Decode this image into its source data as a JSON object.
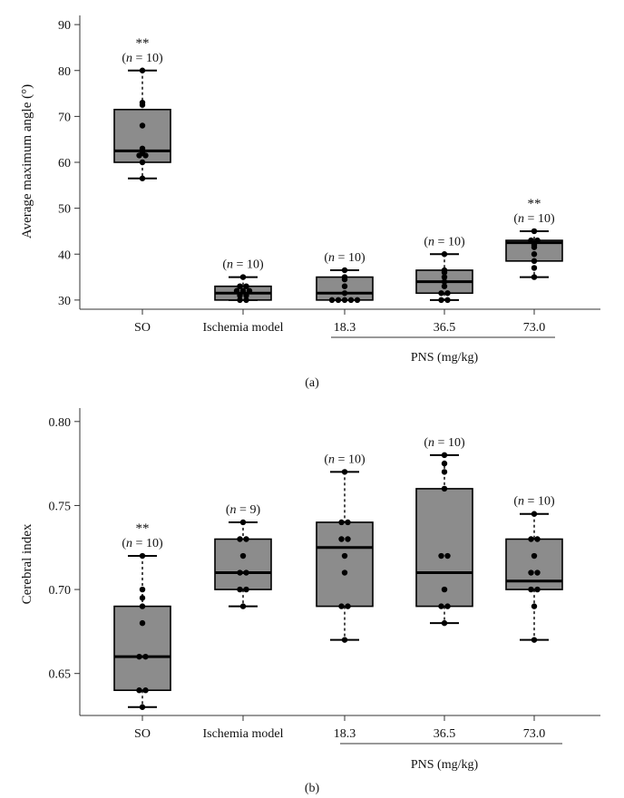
{
  "chart_data": [
    {
      "type": "box",
      "panel_label": "(a)",
      "ylabel": "Average maximum angle (°)",
      "xlabel": "",
      "ylim": [
        28,
        92
      ],
      "yticks": [
        30,
        40,
        50,
        60,
        70,
        80,
        90
      ],
      "group_label": "PNS (mg/kg)",
      "group_categories": [
        "18.3",
        "36.5",
        "73.0"
      ],
      "categories": [
        "SO",
        "Ischemia model",
        "18.3",
        "36.5",
        "73.0"
      ],
      "boxes": [
        {
          "category": "SO",
          "min": 56.5,
          "q1": 60,
          "median": 62.5,
          "q3": 71.5,
          "max": 80,
          "points": [
            56.5,
            60,
            61.5,
            61.5,
            62,
            63,
            68,
            72.5,
            73,
            80
          ],
          "n_label": "10",
          "significance": "**"
        },
        {
          "category": "Ischemia model",
          "min": 30,
          "q1": 30,
          "median": 31.5,
          "q3": 33,
          "max": 35,
          "points": [
            30,
            30,
            31,
            31,
            32,
            32,
            32,
            33,
            33,
            35
          ],
          "n_label": "10",
          "significance": ""
        },
        {
          "category": "18.3",
          "min": 30,
          "q1": 30,
          "median": 31.5,
          "q3": 35,
          "max": 36.5,
          "points": [
            30,
            30,
            30,
            30,
            30,
            31.5,
            33,
            34.5,
            35,
            36.5
          ],
          "n_label": "10",
          "significance": ""
        },
        {
          "category": "36.5",
          "min": 30,
          "q1": 31.5,
          "median": 34,
          "q3": 36.5,
          "max": 40,
          "points": [
            30,
            30,
            31.5,
            31.5,
            33,
            34,
            35,
            36,
            36.5,
            40
          ],
          "n_label": "10",
          "significance": ""
        },
        {
          "category": "73.0",
          "min": 35,
          "q1": 38.5,
          "median": 42.5,
          "q3": 43,
          "max": 45,
          "points": [
            35,
            37,
            38.5,
            40,
            41.5,
            42,
            42.5,
            43,
            43,
            45
          ],
          "n_label": "10",
          "significance": "**"
        }
      ]
    },
    {
      "type": "box",
      "panel_label": "(b)",
      "ylabel": "Cerebral index",
      "xlabel": "",
      "ylim": [
        0.625,
        0.808
      ],
      "yticks": [
        0.65,
        0.7,
        0.75,
        0.8
      ],
      "ytick_labels": [
        "0.65",
        "0.70",
        "0.75",
        "0.80"
      ],
      "group_label": "PNS (mg/kg)",
      "group_categories": [
        "18.3",
        "36.5",
        "73.0"
      ],
      "categories": [
        "SO",
        "Ischemia model",
        "18.3",
        "36.5",
        "73.0"
      ],
      "boxes": [
        {
          "category": "SO",
          "min": 0.63,
          "q1": 0.64,
          "median": 0.66,
          "q3": 0.69,
          "max": 0.72,
          "points": [
            0.63,
            0.64,
            0.64,
            0.66,
            0.66,
            0.68,
            0.69,
            0.695,
            0.7,
            0.72
          ],
          "n_label": "10",
          "significance": "**"
        },
        {
          "category": "Ischemia model",
          "min": 0.69,
          "q1": 0.7,
          "median": 0.71,
          "q3": 0.73,
          "max": 0.74,
          "points": [
            0.69,
            0.7,
            0.7,
            0.71,
            0.71,
            0.72,
            0.73,
            0.73,
            0.74
          ],
          "n_label": "9",
          "significance": ""
        },
        {
          "category": "18.3",
          "min": 0.67,
          "q1": 0.69,
          "median": 0.725,
          "q3": 0.74,
          "max": 0.77,
          "points": [
            0.67,
            0.69,
            0.69,
            0.71,
            0.72,
            0.73,
            0.73,
            0.74,
            0.74,
            0.77
          ],
          "n_label": "10",
          "significance": ""
        },
        {
          "category": "36.5",
          "min": 0.68,
          "q1": 0.69,
          "median": 0.71,
          "q3": 0.76,
          "max": 0.78,
          "points": [
            0.68,
            0.69,
            0.69,
            0.7,
            0.72,
            0.72,
            0.76,
            0.77,
            0.775,
            0.78
          ],
          "n_label": "10",
          "significance": ""
        },
        {
          "category": "73.0",
          "min": 0.67,
          "q1": 0.7,
          "median": 0.705,
          "q3": 0.73,
          "max": 0.745,
          "points": [
            0.67,
            0.69,
            0.7,
            0.7,
            0.71,
            0.71,
            0.72,
            0.73,
            0.73,
            0.745
          ],
          "n_label": "10",
          "significance": ""
        }
      ]
    }
  ],
  "colors": {
    "box_fill": "#8c8c8c",
    "stroke": "#000000",
    "point": "#000000",
    "axis": "#333333"
  },
  "n_prefix": "n = "
}
